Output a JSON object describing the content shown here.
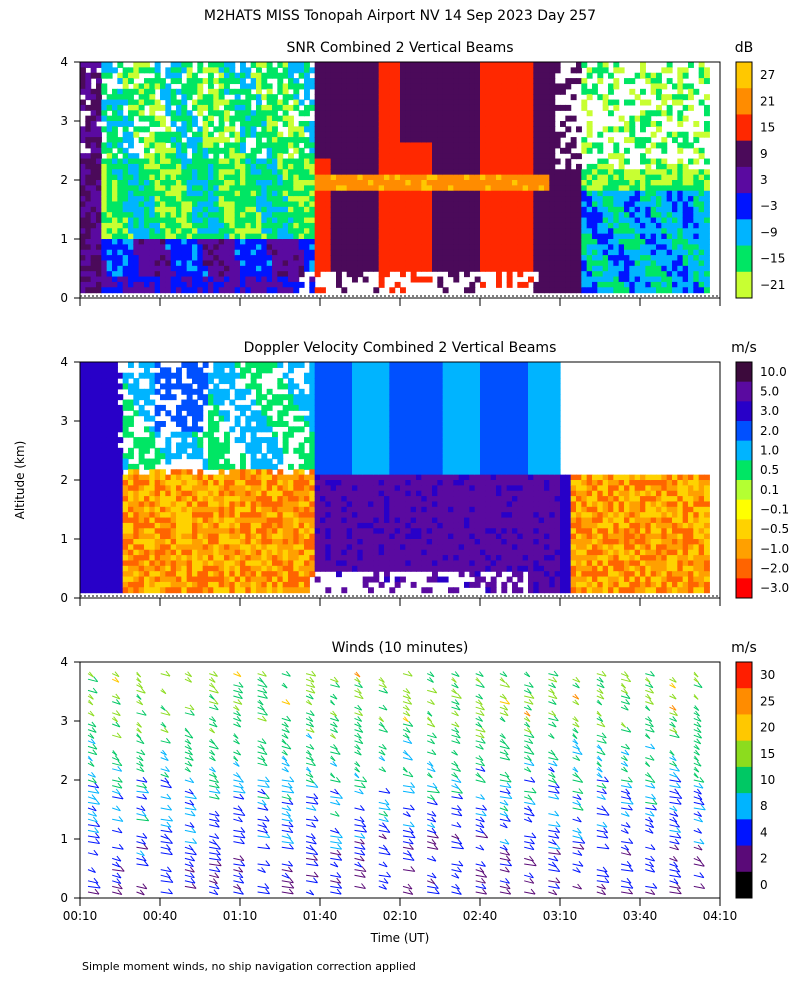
{
  "figure": {
    "title": "M2HATS MISS Tonopah Airport NV  14 Sep 2023 Day 257",
    "ylabel": "Altitude (km)",
    "xlabel": "Time (UT)",
    "footnote": "Simple moment winds, no ship navigation correction applied"
  },
  "chart_data": [
    {
      "type": "heatmap",
      "title": "SNR Combined 2 Vertical Beams",
      "x_tick_labels": [
        "00:10",
        "00:40",
        "01:10",
        "01:40",
        "02:10",
        "02:40",
        "03:10",
        "03:40",
        "04:10"
      ],
      "y_tick_labels": [
        "0",
        "1",
        "2",
        "3",
        "4"
      ],
      "ylim": [
        0,
        4
      ],
      "colorbar": {
        "unit": "dB",
        "labels": [
          "27",
          "21",
          "15",
          "9",
          "3",
          "−3",
          "−9",
          "−15",
          "−21"
        ],
        "colors": [
          "#ffc800",
          "#ff8c00",
          "#ff2800",
          "#4b0a5a",
          "#5a0aa0",
          "#0014ff",
          "#00b4ff",
          "#00e664",
          "#c8ff32"
        ]
      }
    },
    {
      "type": "heatmap",
      "title": "Doppler Velocity Combined 2 Vertical Beams",
      "x_tick_labels": [
        "00:10",
        "00:40",
        "01:10",
        "01:40",
        "02:10",
        "02:40",
        "03:10",
        "03:40",
        "04:10"
      ],
      "y_tick_labels": [
        "0",
        "1",
        "2",
        "3",
        "4"
      ],
      "ylim": [
        0,
        4
      ],
      "colorbar": {
        "unit": "m/s",
        "labels": [
          "10.0",
          "5.0",
          "3.0",
          "2.0",
          "1.0",
          "0.5",
          "0.1",
          "−0.1",
          "−0.5",
          "−1.0",
          "−2.0",
          "−3.0"
        ],
        "colors": [
          "#3c0a3c",
          "#5a0aa0",
          "#2800c8",
          "#0050ff",
          "#00b4ff",
          "#00e664",
          "#b4ff32",
          "#ffff00",
          "#ffd200",
          "#ffa000",
          "#ff6400",
          "#ff0000"
        ]
      }
    },
    {
      "type": "scatter",
      "title": "Winds (10 minutes)",
      "x_tick_labels": [
        "00:10",
        "00:40",
        "01:10",
        "01:40",
        "02:10",
        "02:40",
        "03:10",
        "03:40",
        "04:10"
      ],
      "y_tick_labels": [
        "0",
        "1",
        "2",
        "3",
        "4"
      ],
      "ylim": [
        0,
        4
      ],
      "colorbar": {
        "unit": "m/s",
        "labels": [
          "30",
          "25",
          "20",
          "15",
          "10",
          "8",
          "4",
          "2",
          "0"
        ],
        "colors": [
          "#ff1e00",
          "#ff8c00",
          "#ffc800",
          "#8cdc1e",
          "#00c864",
          "#00b4ff",
          "#0014ff",
          "#5a0a78",
          "#000000"
        ]
      }
    }
  ]
}
